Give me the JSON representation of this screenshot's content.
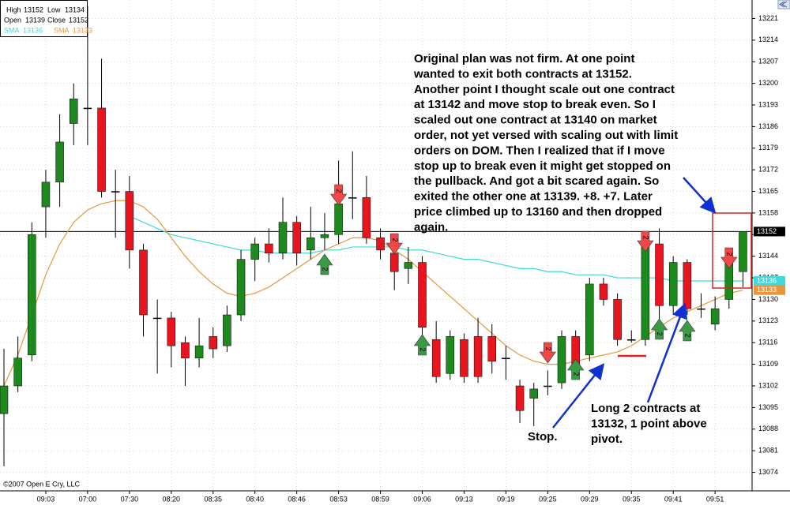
{
  "chart_data": {
    "type": "candlestick",
    "categories": [
      null,
      null,
      null,
      "09:03",
      null,
      null,
      "07:00",
      null,
      null,
      "07:30",
      null,
      null,
      "08:20",
      null,
      null,
      "08:35",
      null,
      null,
      "08:40",
      null,
      null,
      "08:46",
      null,
      null,
      "08:53",
      null,
      null,
      "08:59",
      null,
      null,
      "09:06",
      null,
      null,
      "09:13",
      null,
      null,
      "09:19",
      null,
      null,
      "09:25",
      null,
      null,
      "09:29",
      null,
      null,
      "09:35",
      null,
      null,
      "09:41",
      null,
      null,
      "09:51",
      null,
      null
    ],
    "open": [
      13093,
      13102,
      13112,
      13160,
      13168,
      13187,
      13192,
      13192,
      13165,
      13165,
      13146,
      13124,
      13124,
      13116,
      13111,
      13118,
      13115,
      13125,
      13143,
      13148,
      13145,
      13155,
      13146,
      13150,
      13151,
      13163,
      13163,
      13150,
      13145,
      13140,
      13142,
      13117,
      13106,
      13117,
      13118,
      13118,
      13111,
      13102,
      13098,
      13102,
      13103,
      13118,
      13112,
      13135,
      13130,
      13117,
      13117,
      13148,
      13128,
      13142,
      13127,
      13122,
      13130,
      13139
    ],
    "high": [
      13114,
      13118,
      13155,
      13172,
      13190,
      13200,
      13225,
      13208,
      13172,
      13170,
      13148,
      13130,
      13126,
      13118,
      13124,
      13121,
      13128,
      13146,
      13150,
      13153,
      13163,
      13157,
      13160,
      13158,
      13175,
      13178,
      13170,
      13153,
      13148,
      13147,
      13144,
      13123,
      13120,
      13119,
      13124,
      13122,
      13115,
      13104,
      13103,
      13107,
      13120,
      13120,
      13137,
      13137,
      13132,
      13120,
      13152,
      13153,
      13144,
      13143,
      13132,
      13131,
      13146,
      13152
    ],
    "low": [
      13076,
      13100,
      13110,
      13150,
      13160,
      13180,
      13180,
      13163,
      13150,
      13140,
      13118,
      13106,
      13108,
      13102,
      13108,
      13111,
      13113,
      13123,
      13136,
      13142,
      13143,
      13141,
      13143,
      13146,
      13148,
      13156,
      13148,
      13143,
      13133,
      13135,
      13114,
      13103,
      13104,
      13103,
      13103,
      13106,
      13104,
      13090,
      13089,
      13099,
      13101,
      13106,
      13110,
      13128,
      13115,
      13116,
      13115,
      13121,
      13125,
      13125,
      13124,
      13120,
      13127,
      13134
    ],
    "close": [
      13102,
      13111,
      13151,
      13168,
      13181,
      13195,
      13192,
      13165,
      13165,
      13146,
      13125,
      13124,
      13115,
      13111,
      13115,
      13114,
      13125,
      13143,
      13148,
      13145,
      13155,
      13145,
      13150,
      13151,
      13161,
      13163,
      13150,
      13146,
      13139,
      13142,
      13121,
      13105,
      13118,
      13105,
      13105,
      13110,
      13111,
      13094,
      13101,
      13102,
      13118,
      13108,
      13135,
      13130,
      13117,
      13117,
      13148,
      13128,
      13142,
      13127,
      13127,
      13127,
      13142,
      13152
    ],
    "up_color": "#1e8a1e",
    "down_color": "#e8141e",
    "series": [
      {
        "name": "SMA",
        "color": "#40d8d8",
        "values": [
          null,
          null,
          null,
          null,
          null,
          null,
          null,
          null,
          null,
          13157,
          13155,
          13153,
          13151,
          13150,
          13149,
          13148,
          13147,
          13146,
          13146,
          13145,
          13145,
          13145,
          13145,
          13146,
          13146,
          13147,
          13147,
          13147,
          13147,
          13146,
          13146,
          13145,
          13144,
          13143,
          13143,
          13142,
          13141,
          13140,
          13140,
          13139,
          13139,
          13138,
          13138,
          13138,
          13137,
          13137,
          13137,
          13137,
          13136,
          13136,
          13136,
          13136,
          13136,
          13136
        ]
      },
      {
        "name": "SMA",
        "color": "#e8963c",
        "values": [
          13102,
          13112,
          13125,
          13138,
          13148,
          13155,
          13159,
          13161,
          13162,
          13162,
          13160,
          13156,
          13150,
          13144,
          13139,
          13135,
          13132,
          13131,
          13132,
          13134,
          13137,
          13140,
          13143,
          13146,
          13148,
          13150,
          13150,
          13149,
          13146,
          13143,
          13139,
          13135,
          13131,
          13127,
          13123,
          13119,
          13115,
          13112,
          13110,
          13109,
          13109,
          13110,
          13111,
          13112,
          13113,
          13115,
          13118,
          13121,
          13124,
          13126,
          13128,
          13130,
          13132,
          13133
        ]
      }
    ],
    "ylim": [
      13068,
      13227
    ],
    "yticks": [
      13074,
      13081,
      13088,
      13095,
      13102,
      13109,
      13116,
      13123,
      13130,
      13137,
      13144,
      13151,
      13158,
      13165,
      13172,
      13179,
      13186,
      13193,
      13200,
      13207,
      13214,
      13221
    ],
    "grid": true,
    "info_labels": {
      "high": "High",
      "low": "Low",
      "open": "Open",
      "close": "Close"
    },
    "marker_label": "2",
    "annotation": [
      "Original plan was not firm.  At one point",
      "wanted to exit both contracts at 13152.",
      "Another point I thought scale out one contract",
      "at 13142 and move stop to break even.  So I",
      "scaled out one contract at 13140 on market",
      "order, not yet versed with scaling out with limit",
      "orders on DOM.  Then I realized that if I move",
      "stop up to break even it might get stopped on",
      "the pullback.  And got a bit scared again.  So",
      "exited the other one at 13139.  +8.  +7.  Later",
      "price climbed up to 13160 and then dropped",
      "again."
    ],
    "note_long": [
      "Long 2 contracts at",
      "13132, 1 point above",
      "pivot."
    ],
    "note_stop": "Stop.",
    "copyright": "©2007 Open E Cry, LLC"
  }
}
